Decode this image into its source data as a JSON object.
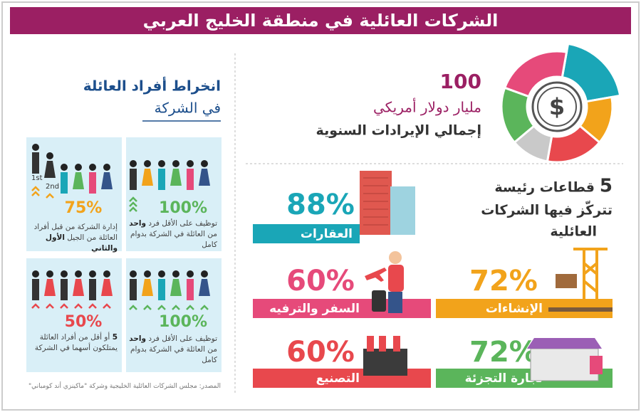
{
  "title": "الشركات العائلية في منطقة الخليج العربي",
  "revenue": {
    "amount": "100",
    "unit": "مليار دولار أمريكي",
    "label": "إجمالي الإيرادات السنوية"
  },
  "sectors_heading": {
    "count": "5",
    "lines": [
      "قطاعات رئيسة",
      "تتركّز فيها الشركات",
      "العائلية"
    ]
  },
  "sectors": [
    {
      "percent": "88%",
      "label": "العقارات"
    },
    {
      "percent": "60%",
      "label": "السفر والترفيه"
    },
    {
      "percent": "72%",
      "label": "الإنشاءات"
    },
    {
      "percent": "60%",
      "label": "التصنيع"
    },
    {
      "percent": "72%",
      "label": "تجارة التجزئة"
    }
  ],
  "involvement": {
    "heading": [
      "انخراط أفراد العائلة",
      "في الشركة"
    ],
    "generations": [
      "1st",
      "2nd"
    ],
    "cards": [
      {
        "percent": "75%",
        "text": [
          "إدارة الشركة من قبل أفراد العائلة من الجيل",
          "الأول والثاني"
        ]
      },
      {
        "percent": "100%",
        "text": [
          "توظيف على الأقل فرد",
          "واحد",
          "من العائلة في الشركة بدوام كامل"
        ]
      },
      {
        "percent": "50%",
        "text": [
          "5",
          "أو أقل من أفراد العائلة يمتلكون أسهما في الشركة"
        ]
      },
      {
        "percent": "100%",
        "text": [
          "توظيف على الأقل فرد",
          "واحد",
          "من العائلة في الشركة بدوام كامل"
        ]
      }
    ]
  },
  "source": "المصدر: مجلس الشركات العائلية الخليجية وشركة \"ماكينزي أند كومباني\""
}
